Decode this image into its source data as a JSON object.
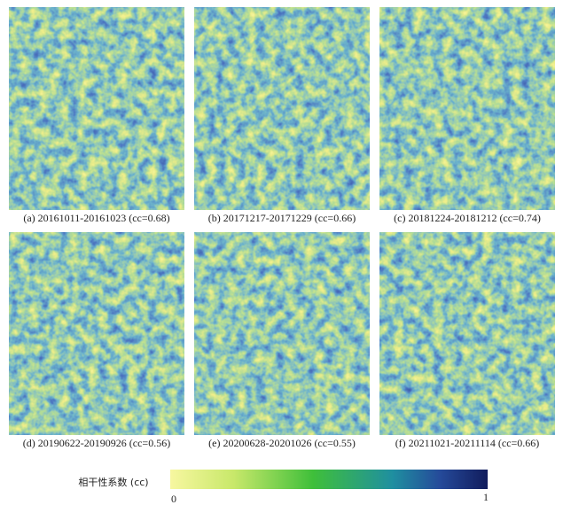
{
  "panels": [
    {
      "caption": "(a) 20161011-20161023 (cc=0.68)"
    },
    {
      "caption": "(b) 20171217-20171229 (cc=0.66)"
    },
    {
      "caption": "(c) 20181224-20181212 (cc=0.74)"
    },
    {
      "caption": "(d) 20190622-20190926 (cc=0.56)"
    },
    {
      "caption": "(e) 20200628-20201026 (cc=0.55)"
    },
    {
      "caption": "(f) 20211021-20211114 (cc=0.66)"
    }
  ],
  "colorbar": {
    "label": "相干性系数 (cc)",
    "min": 0,
    "max": 1
  }
}
